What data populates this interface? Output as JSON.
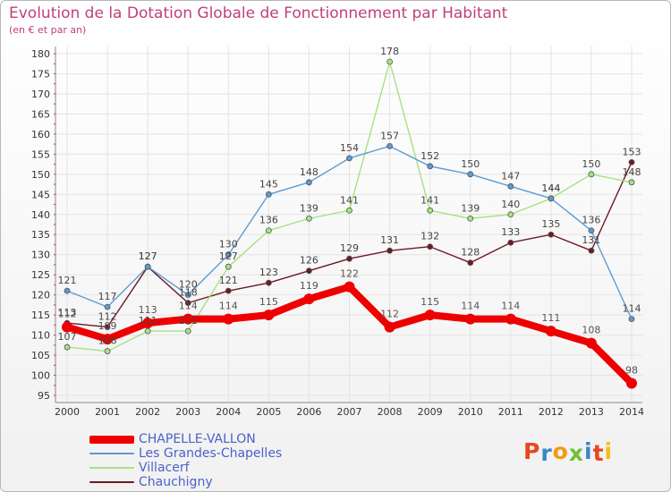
{
  "chart_data": {
    "type": "line",
    "title": "Evolution de la Dotation Globale de Fonctionnement par Habitant",
    "subtitle": "(en € et par an)",
    "categories": [
      "2000",
      "2001",
      "2002",
      "2003",
      "2004",
      "2005",
      "2006",
      "2007",
      "2008",
      "2009",
      "2010",
      "2011",
      "2012",
      "2013",
      "2014"
    ],
    "ylim": [
      95,
      180
    ],
    "ystep": 5,
    "y_ticks": [
      "95",
      "100",
      "105",
      "110",
      "115",
      "120",
      "125",
      "130",
      "135",
      "140",
      "145",
      "150",
      "155",
      "160",
      "165",
      "170",
      "175",
      "180"
    ],
    "grid": true,
    "series": [
      {
        "name": "Chauchigny",
        "color": "#6b1a26",
        "values": [
          113,
          112,
          127,
          118,
          121,
          123,
          126,
          129,
          131,
          132,
          128,
          133,
          135,
          131,
          153
        ],
        "labels": [
          "113",
          "112",
          "127",
          "118",
          "121",
          "123",
          "126",
          "129",
          "131",
          "132",
          "128",
          "133",
          "135",
          "131",
          "153"
        ]
      },
      {
        "name": "Villacerf",
        "color": "#a6e283",
        "values": [
          107,
          106,
          111,
          111,
          127,
          136,
          139,
          141,
          178,
          141,
          139,
          140,
          144,
          150,
          148
        ],
        "labels": [
          "107",
          "106",
          "111",
          "111",
          "127",
          "136",
          "139",
          "141",
          "178",
          "141",
          "139",
          "140",
          "144",
          "150",
          "148"
        ]
      },
      {
        "name": "Les Grandes-Chapelles",
        "color": "#5c9bd1",
        "values": [
          121,
          117,
          127,
          120,
          130,
          145,
          148,
          154,
          157,
          152,
          150,
          147,
          144,
          136,
          114
        ],
        "labels": [
          "121",
          "117",
          "127",
          "120",
          "130",
          "145",
          "148",
          "154",
          "157",
          "152",
          "150",
          "147",
          "144",
          "136",
          "114"
        ]
      },
      {
        "name": "CHAPELLE-VALLON",
        "color": "#ee0000",
        "values": [
          112,
          109,
          113,
          114,
          114,
          115,
          119,
          122,
          112,
          115,
          114,
          114,
          111,
          108,
          98
        ],
        "labels": [
          "112",
          "109",
          "113",
          "114",
          "114",
          "115",
          "119",
          "122",
          "112",
          "115",
          "114",
          "114",
          "111",
          "108",
          "98"
        ]
      }
    ],
    "legend": [
      "CHAPELLE-VALLON",
      "Les Grandes-Chapelles",
      "Villacerf",
      "Chauchigny"
    ],
    "legend_position": "bottom-left"
  },
  "logo": {
    "letters": [
      "P",
      "r",
      "o",
      "x",
      "i",
      "t",
      "i"
    ],
    "colors": [
      "#e8471f",
      "#3a86c8",
      "#f29a12",
      "#6dbf3a",
      "#3a86c8",
      "#e8471f",
      "#f2c012"
    ]
  }
}
